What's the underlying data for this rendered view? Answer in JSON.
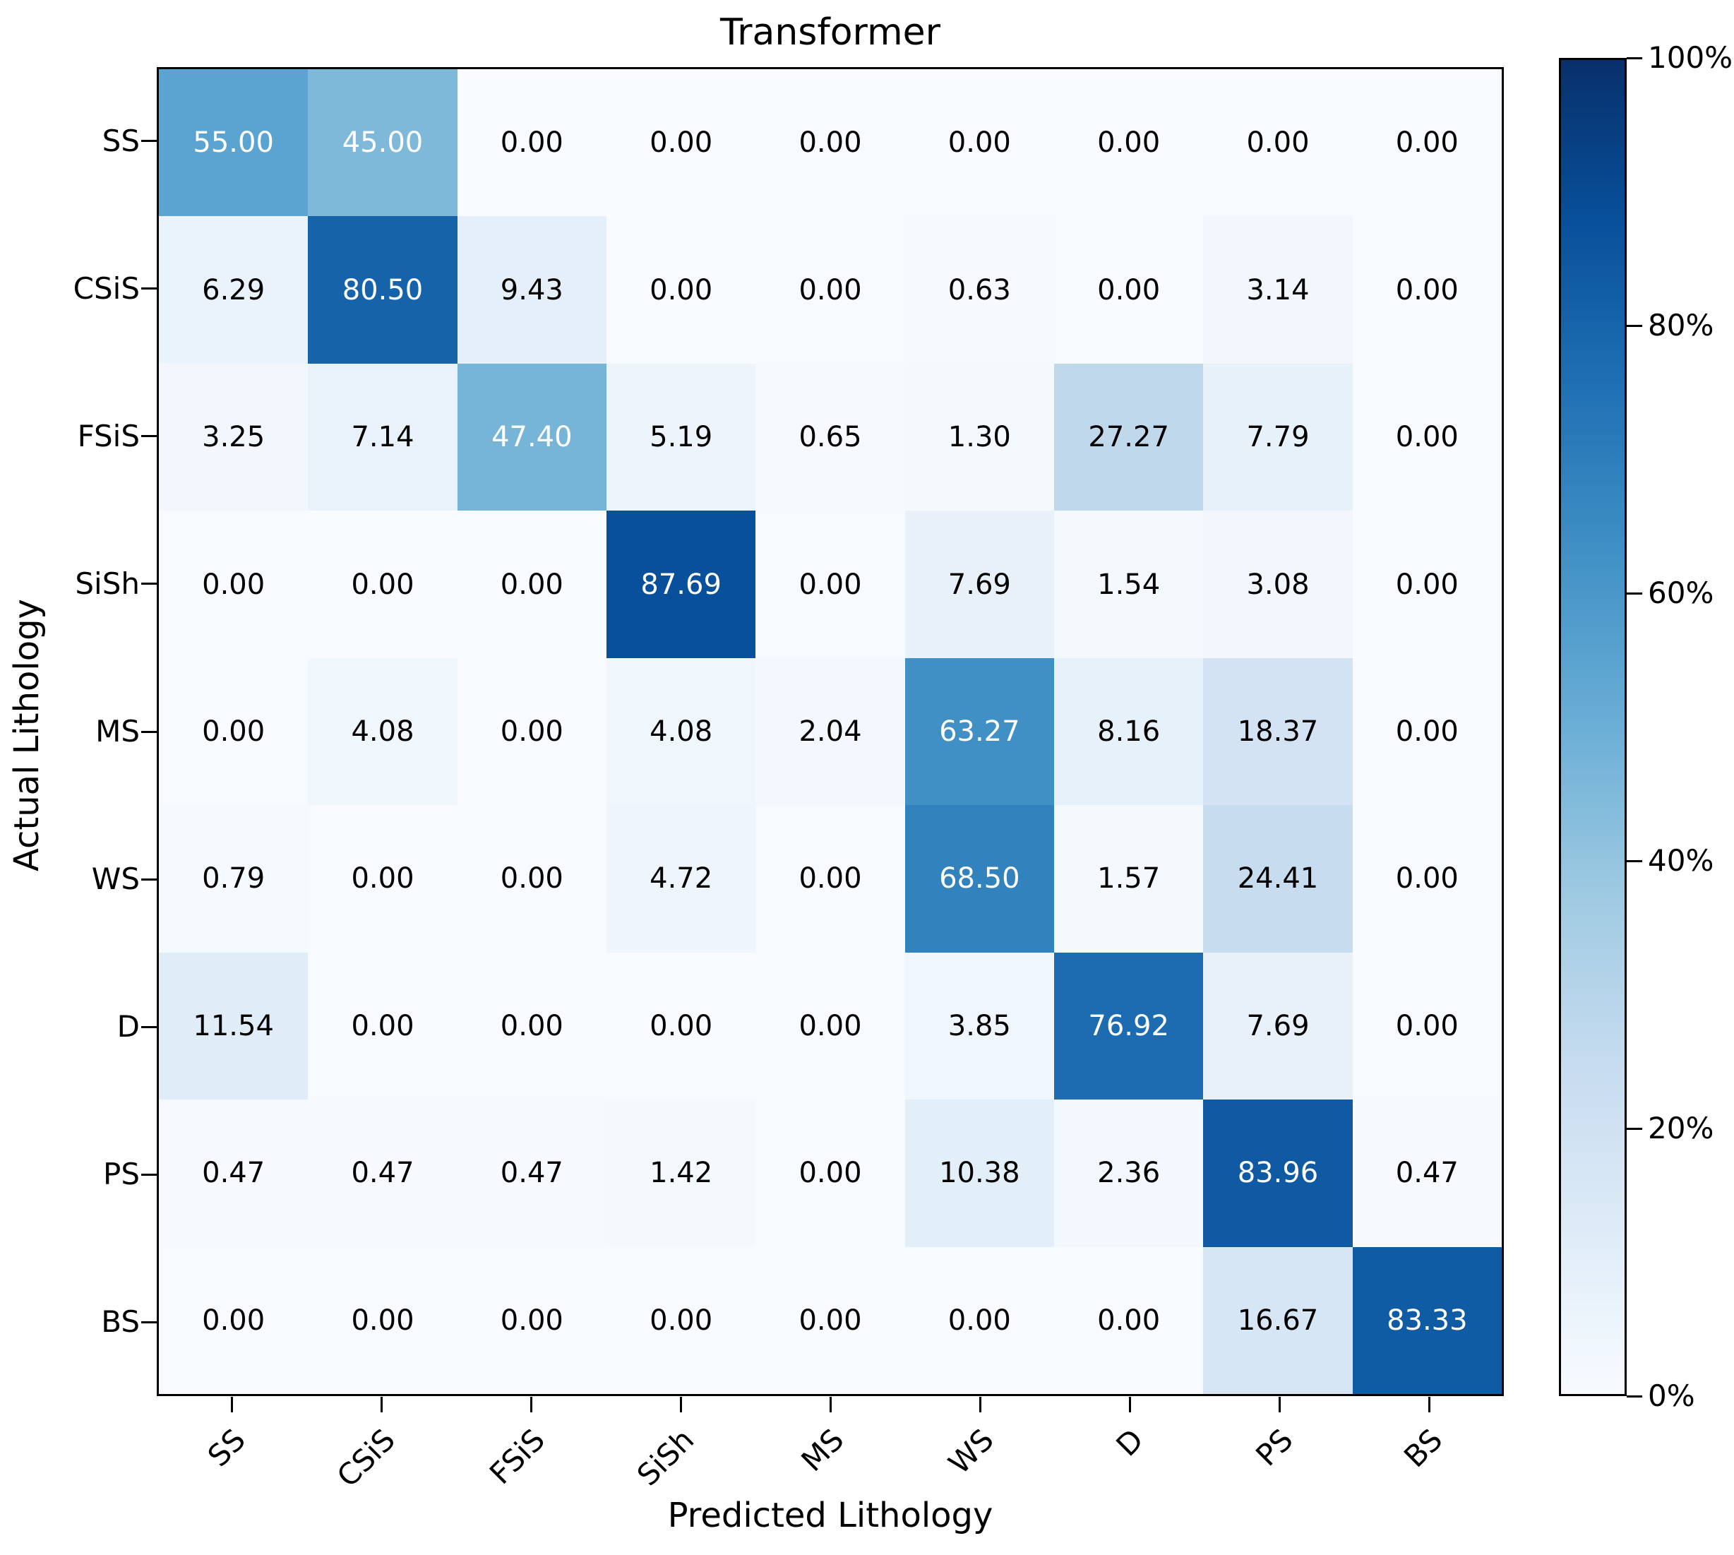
{
  "chart_data": {
    "type": "heatmap",
    "title": "Transformer",
    "xlabel": "Predicted Lithology",
    "ylabel": "Actual Lithology",
    "categories": [
      "SS",
      "CSiS",
      "FSiS",
      "SiSh",
      "MS",
      "WS",
      "D",
      "PS",
      "BS"
    ],
    "matrix": [
      [
        55.0,
        45.0,
        0.0,
        0.0,
        0.0,
        0.0,
        0.0,
        0.0,
        0.0
      ],
      [
        6.29,
        80.5,
        9.43,
        0.0,
        0.0,
        0.63,
        0.0,
        3.14,
        0.0
      ],
      [
        3.25,
        7.14,
        47.4,
        5.19,
        0.65,
        1.3,
        27.27,
        7.79,
        0.0
      ],
      [
        0.0,
        0.0,
        0.0,
        87.69,
        0.0,
        7.69,
        1.54,
        3.08,
        0.0
      ],
      [
        0.0,
        4.08,
        0.0,
        4.08,
        2.04,
        63.27,
        8.16,
        18.37,
        0.0
      ],
      [
        0.79,
        0.0,
        0.0,
        4.72,
        0.0,
        68.5,
        1.57,
        24.41,
        0.0
      ],
      [
        11.54,
        0.0,
        0.0,
        0.0,
        0.0,
        3.85,
        76.92,
        7.69,
        0.0
      ],
      [
        0.47,
        0.47,
        0.47,
        1.42,
        0.0,
        10.38,
        2.36,
        83.96,
        0.47
      ],
      [
        0.0,
        0.0,
        0.0,
        0.0,
        0.0,
        0.0,
        0.0,
        16.67,
        83.33
      ]
    ],
    "value_decimals": 2,
    "vmin": 0,
    "vmax": 100,
    "colormap": "Blues",
    "colormap_stops": [
      "#f7fbff",
      "#deebf7",
      "#c6dbef",
      "#9ecae1",
      "#6baed6",
      "#4292c6",
      "#2171b5",
      "#08519c",
      "#08306b"
    ],
    "white_text_threshold": 40,
    "cell_text_colors": {
      "dark_cell": "#ffffff",
      "light_cell": "#000000"
    },
    "legend_position": "right",
    "grid": false,
    "colorbar_ticks": [
      {
        "value": 0,
        "label": "0%"
      },
      {
        "value": 20,
        "label": "20%"
      },
      {
        "value": 40,
        "label": "40%"
      },
      {
        "value": 60,
        "label": "60%"
      },
      {
        "value": 80,
        "label": "80%"
      },
      {
        "value": 100,
        "label": "100%"
      }
    ]
  }
}
